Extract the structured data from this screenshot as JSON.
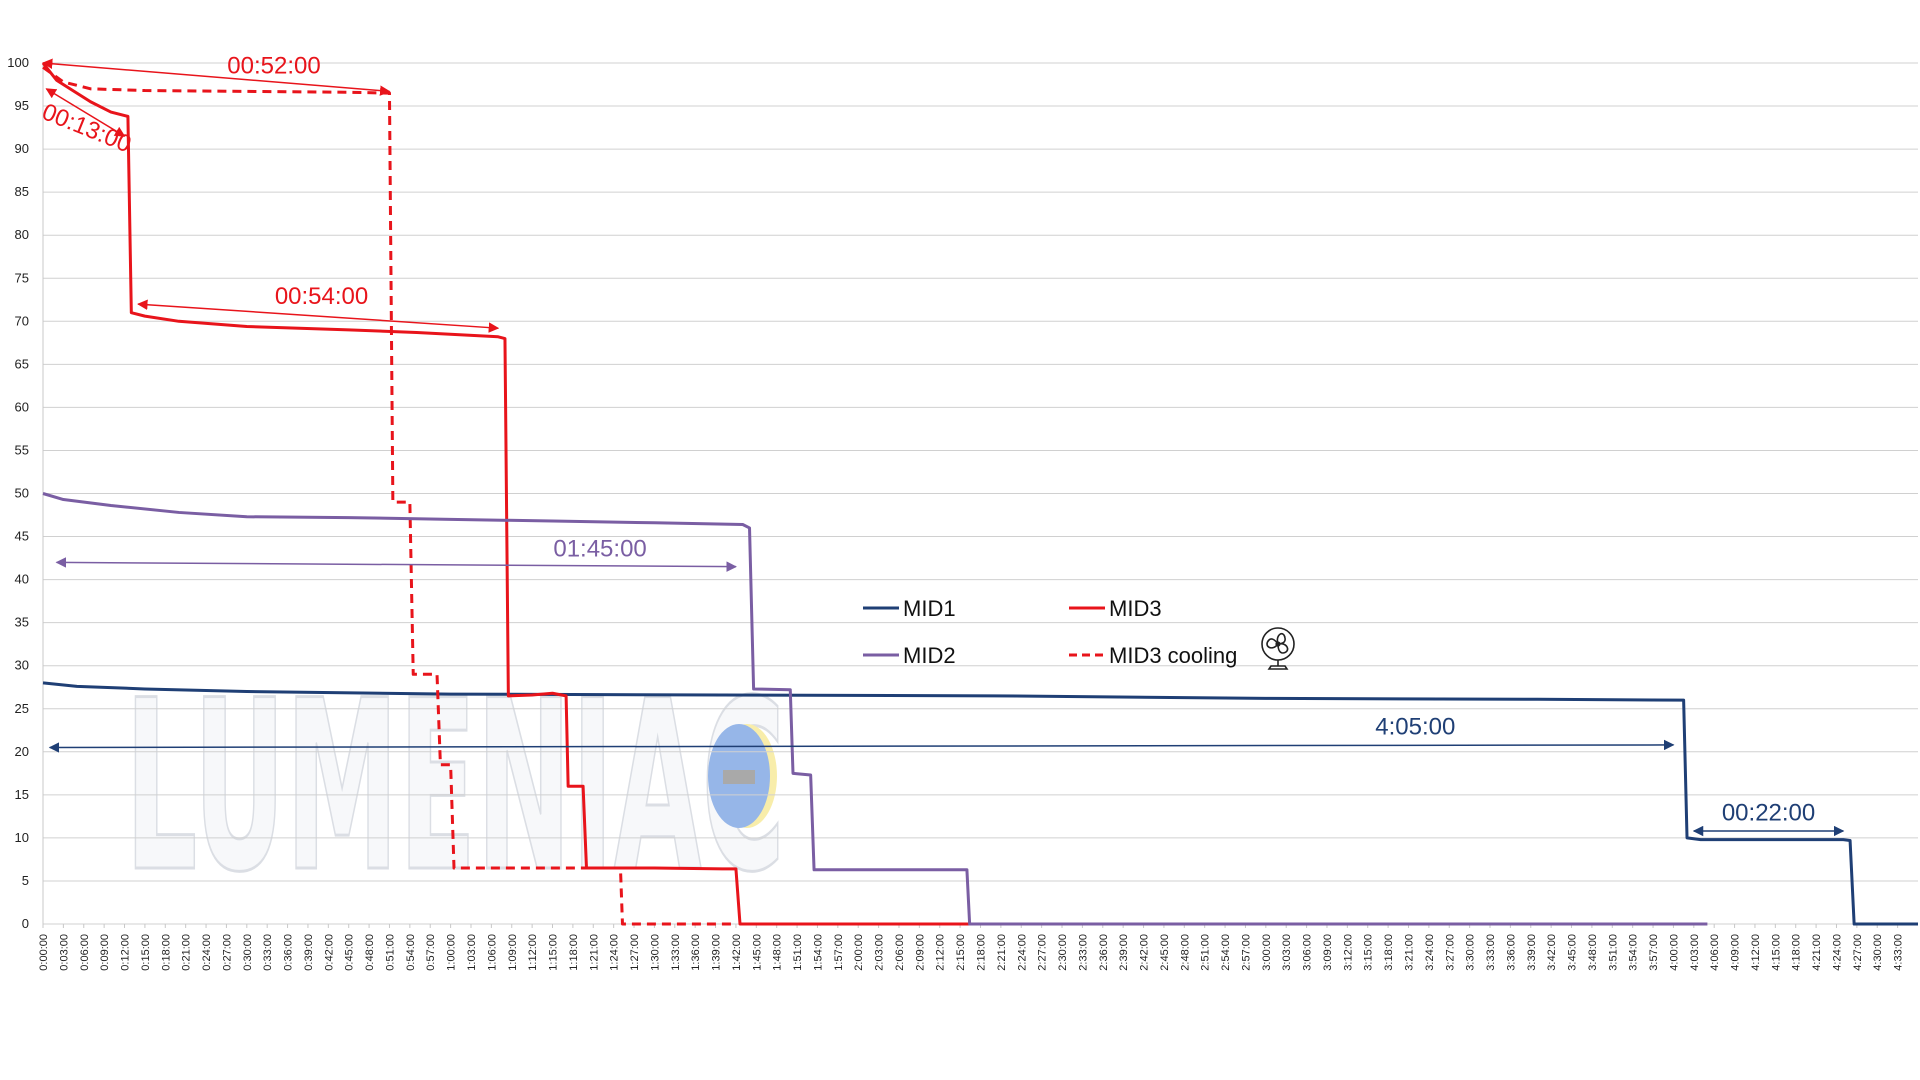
{
  "chart_data": {
    "type": "line",
    "title": "",
    "xlabel": "",
    "ylabel": "",
    "ylim": [
      0,
      100
    ],
    "xlim_minutes": [
      0,
      276
    ],
    "y_ticks": [
      0,
      5,
      10,
      15,
      20,
      25,
      30,
      35,
      40,
      45,
      50,
      55,
      60,
      65,
      70,
      75,
      80,
      85,
      90,
      95,
      100
    ],
    "x_tick_step_minutes": 3,
    "x_tick_format": "h:mm:ss",
    "x_tick_labels": [
      "0:00:00",
      "0:03:00",
      "0:06:00",
      "0:09:00",
      "0:12:00",
      "0:15:00",
      "0:18:00",
      "0:21:00",
      "0:24:00",
      "0:27:00",
      "0:30:00",
      "0:33:00",
      "0:36:00",
      "0:39:00",
      "0:42:00",
      "0:45:00",
      "0:48:00",
      "0:51:00",
      "0:54:00",
      "0:57:00",
      "1:00:00",
      "1:03:00",
      "1:06:00",
      "1:09:00",
      "1:12:00",
      "1:15:00",
      "1:18:00",
      "1:21:00",
      "1:24:00",
      "1:27:00",
      "1:30:00",
      "1:33:00",
      "1:36:00",
      "1:39:00",
      "1:42:00",
      "1:45:00",
      "1:48:00",
      "1:51:00",
      "1:54:00",
      "1:57:00",
      "2:00:00",
      "2:03:00",
      "2:06:00",
      "2:09:00",
      "2:12:00",
      "2:15:00",
      "2:18:00",
      "2:21:00",
      "2:24:00",
      "2:27:00",
      "2:30:00",
      "2:33:00",
      "2:36:00",
      "2:39:00",
      "2:42:00",
      "2:45:00",
      "2:48:00",
      "2:51:00",
      "2:54:00",
      "2:57:00",
      "3:00:00",
      "3:03:00",
      "3:06:00",
      "3:09:00",
      "3:12:00",
      "3:15:00",
      "3:18:00",
      "3:21:00",
      "3:24:00",
      "3:27:00",
      "3:30:00",
      "3:33:00",
      "3:36:00",
      "3:39:00",
      "3:42:00",
      "3:45:00",
      "3:48:00",
      "3:51:00",
      "3:54:00",
      "3:57:00",
      "4:00:00",
      "4:03:00",
      "4:06:00",
      "4:09:00",
      "4:12:00",
      "4:15:00",
      "4:18:00",
      "4:21:00",
      "4:24:00",
      "4:27:00",
      "4:30:00",
      "4:33:00"
    ],
    "grid": "horizontal",
    "legend": {
      "placement": "center-right",
      "entries": [
        {
          "name": "MID1",
          "color": "#1f3f75",
          "dash": "solid"
        },
        {
          "name": "MID3",
          "color": "#e8141b",
          "dash": "solid"
        },
        {
          "name": "MID2",
          "color": "#7a5ea3",
          "dash": "solid"
        },
        {
          "name": "MID3 cooling",
          "color": "#e8141b",
          "dash": "dashed",
          "icon": "fan-icon"
        }
      ]
    },
    "series": [
      {
        "name": "MID1",
        "color": "#1f3f75",
        "dash": "solid",
        "points": [
          [
            0,
            28
          ],
          [
            5,
            27.6
          ],
          [
            15,
            27.3
          ],
          [
            30,
            27
          ],
          [
            60,
            26.7
          ],
          [
            100,
            26.6
          ],
          [
            140,
            26.5
          ],
          [
            180,
            26.2
          ],
          [
            220,
            26.1
          ],
          [
            241.5,
            26
          ],
          [
            242,
            10
          ],
          [
            244,
            9.8
          ],
          [
            265,
            9.8
          ],
          [
            266,
            9.7
          ],
          [
            266.6,
            0
          ],
          [
            276,
            0
          ]
        ]
      },
      {
        "name": "MID3",
        "color": "#e8141b",
        "dash": "solid",
        "points": [
          [
            0,
            100
          ],
          [
            2,
            98
          ],
          [
            4,
            97
          ],
          [
            7,
            95.5
          ],
          [
            10,
            94.3
          ],
          [
            12.5,
            93.8
          ],
          [
            13,
            71
          ],
          [
            15,
            70.6
          ],
          [
            20,
            70
          ],
          [
            30,
            69.4
          ],
          [
            45,
            69
          ],
          [
            55,
            68.7
          ],
          [
            67,
            68.2
          ],
          [
            68,
            68
          ],
          [
            68.5,
            26.5
          ],
          [
            72,
            26.6
          ],
          [
            75,
            26.8
          ],
          [
            77,
            26.5
          ],
          [
            77.3,
            16
          ],
          [
            79.5,
            16
          ],
          [
            80,
            6.5
          ],
          [
            90,
            6.5
          ],
          [
            100,
            6.4
          ],
          [
            102,
            6.4
          ],
          [
            102.6,
            0
          ],
          [
            142,
            0
          ]
        ]
      },
      {
        "name": "MID3 cooling",
        "color": "#e8141b",
        "dash": "dashed",
        "points": [
          [
            0,
            99.5
          ],
          [
            3,
            97.8
          ],
          [
            7,
            97
          ],
          [
            15,
            96.8
          ],
          [
            30,
            96.7
          ],
          [
            45,
            96.6
          ],
          [
            51,
            96.5
          ],
          [
            51.5,
            49
          ],
          [
            54,
            49
          ],
          [
            54.5,
            29
          ],
          [
            58,
            29
          ],
          [
            58.5,
            18.5
          ],
          [
            60,
            18.5
          ],
          [
            60.5,
            6.5
          ],
          [
            85,
            6.5
          ],
          [
            85.3,
            0
          ],
          [
            102,
            0
          ]
        ]
      },
      {
        "name": "MID2",
        "color": "#7a5ea3",
        "dash": "solid",
        "points": [
          [
            0,
            50
          ],
          [
            3,
            49.3
          ],
          [
            10,
            48.6
          ],
          [
            20,
            47.8
          ],
          [
            30,
            47.3
          ],
          [
            45,
            47.2
          ],
          [
            60,
            47
          ],
          [
            75,
            46.8
          ],
          [
            90,
            46.6
          ],
          [
            103,
            46.4
          ],
          [
            104,
            46
          ],
          [
            104.6,
            27.3
          ],
          [
            110,
            27.2
          ],
          [
            110.4,
            17.5
          ],
          [
            113,
            17.3
          ],
          [
            113.5,
            6.3
          ],
          [
            125,
            6.3
          ],
          [
            136,
            6.3
          ],
          [
            136.4,
            0
          ],
          [
            245,
            0
          ]
        ]
      }
    ],
    "annotations": [
      {
        "text": "00:52:00",
        "color": "#e8141b",
        "x1": 0,
        "y1": 100,
        "x2": 51,
        "y2": 96.7,
        "label_x": 34,
        "label_y": 98.8,
        "rotate": 0
      },
      {
        "text": "00:13:00",
        "color": "#e8141b",
        "x1": 0.5,
        "y1": 97,
        "x2": 12,
        "y2": 91.5,
        "label_x": 6,
        "label_y": 91.6,
        "rotate": 22
      },
      {
        "text": "00:54:00",
        "color": "#e8141b",
        "x1": 14,
        "y1": 72,
        "x2": 67,
        "y2": 69.2,
        "label_x": 41,
        "label_y": 72,
        "rotate": 0
      },
      {
        "text": "01:45:00",
        "color": "#7a5ea3",
        "x1": 2,
        "y1": 42,
        "x2": 102,
        "y2": 41.5,
        "label_x": 82,
        "label_y": 42.7,
        "rotate": 0
      },
      {
        "text": "4:05:00",
        "color": "#1f3f75",
        "x1": 1,
        "y1": 20.5,
        "x2": 240,
        "y2": 20.8,
        "label_x": 202,
        "label_y": 22,
        "rotate": 0
      },
      {
        "text": "00:22:00",
        "color": "#1f3f75",
        "x1": 243,
        "y1": 10.8,
        "x2": 265,
        "y2": 10.8,
        "label_x": 254,
        "label_y": 12,
        "rotate": 0
      }
    ]
  }
}
